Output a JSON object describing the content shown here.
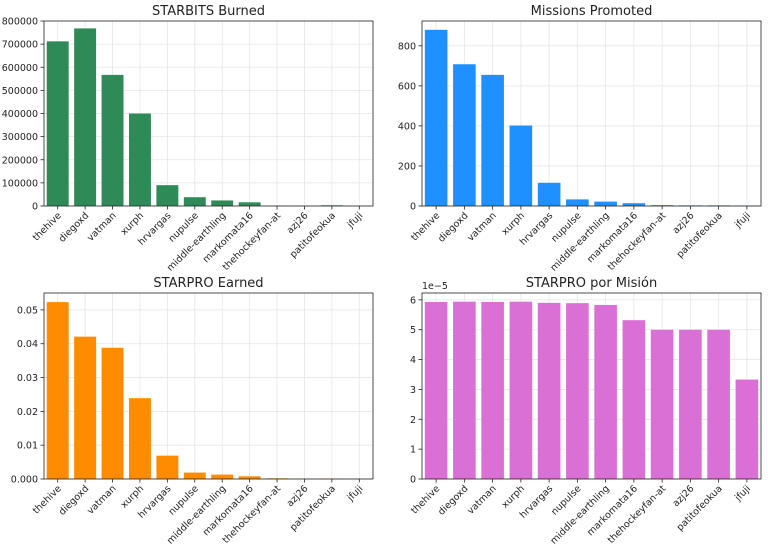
{
  "chart_data": [
    {
      "type": "bar",
      "title": "STARBITS Burned",
      "color": "#2e8b57",
      "categories": [
        "thehive",
        "diegoxd",
        "vatman",
        "xurph",
        "hrvargas",
        "nupulse",
        "middle-earthling",
        "markomata16",
        "thehockeyfan-at",
        "azj26",
        "patitofeokua",
        "jfuji"
      ],
      "values": [
        712000,
        768000,
        567000,
        400000,
        90000,
        38000,
        24000,
        16000,
        1000,
        500,
        3000,
        200
      ],
      "ylim": [
        0,
        800000
      ],
      "yticks": [
        0,
        100000,
        200000,
        300000,
        400000,
        500000,
        600000,
        700000,
        800000
      ],
      "ytick_labels": [
        "0",
        "100000",
        "200000",
        "300000",
        "400000",
        "500000",
        "600000",
        "700000",
        "800000"
      ],
      "grid": true
    },
    {
      "type": "bar",
      "title": "Missions Promoted",
      "color": "#1e90ff",
      "categories": [
        "thehive",
        "diegoxd",
        "vatman",
        "xurph",
        "hrvargas",
        "nupulse",
        "middle-earthling",
        "markomata16",
        "thehockeyfan-at",
        "azj26",
        "patitofeokua",
        "jfuji"
      ],
      "values": [
        880,
        708,
        655,
        402,
        116,
        33,
        22,
        14,
        4,
        3,
        3,
        2
      ],
      "ylim": [
        0,
        924
      ],
      "yticks": [
        0,
        200,
        400,
        600,
        800
      ],
      "ytick_labels": [
        "0",
        "200",
        "400",
        "600",
        "800"
      ],
      "grid": true
    },
    {
      "type": "bar",
      "title": "STARPRO Earned",
      "color": "#ff8c00",
      "categories": [
        "thehive",
        "diegoxd",
        "vatman",
        "xurph",
        "hrvargas",
        "nupulse",
        "middle-earthling",
        "markomata16",
        "thehockeyfan-at",
        "azj26",
        "patitofeokua",
        "jfuji"
      ],
      "values": [
        0.0523,
        0.0421,
        0.0388,
        0.0239,
        0.0069,
        0.0019,
        0.0013,
        0.0008,
        0.0002,
        0.0001,
        0.0001,
        5e-05
      ],
      "ylim": [
        0,
        0.055
      ],
      "yticks": [
        0,
        0.01,
        0.02,
        0.03,
        0.04,
        0.05
      ],
      "ytick_labels": [
        "0.000",
        "0.01",
        "0.02",
        "0.03",
        "0.04",
        "0.05"
      ],
      "grid": true
    },
    {
      "type": "bar",
      "title": "STARPRO por Misión",
      "color": "#da70d6",
      "categories": [
        "thehive",
        "diegoxd",
        "vatman",
        "xurph",
        "hrvargas",
        "nupulse",
        "middle-earthling",
        "markomata16",
        "thehockeyfan-at",
        "azj26",
        "patitofeokua",
        "jfuji"
      ],
      "values": [
        5.93,
        5.94,
        5.93,
        5.94,
        5.9,
        5.89,
        5.83,
        5.32,
        5.0,
        5.0,
        5.0,
        3.33
      ],
      "ylim": [
        0,
        6.23
      ],
      "yticks": [
        0,
        1,
        2,
        3,
        4,
        5,
        6
      ],
      "ytick_labels": [
        "0",
        "1",
        "2",
        "3",
        "4",
        "5",
        "6"
      ],
      "offset_label": "1e−5",
      "grid": true
    }
  ]
}
